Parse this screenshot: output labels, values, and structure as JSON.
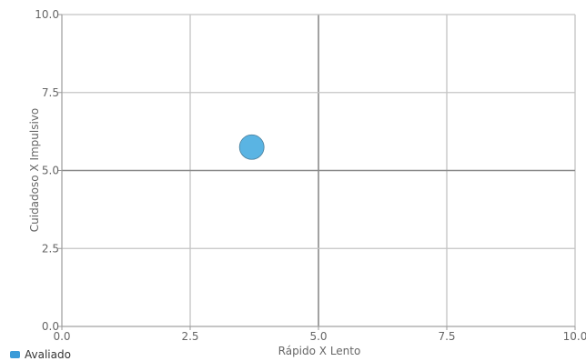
{
  "chart_data": {
    "type": "scatter",
    "xlabel": "Rápido X Lento",
    "ylabel": "Cuidadoso X Impulsivo",
    "xlim": [
      0,
      10
    ],
    "ylim": [
      0,
      10
    ],
    "x_ticks": [
      "0.0",
      "2.5",
      "5.0",
      "7.5",
      "10.0"
    ],
    "y_ticks": [
      "0.0",
      "2.5",
      "5.0",
      "7.5",
      "10.0"
    ],
    "x_tick_values": [
      0,
      2.5,
      5,
      7.5,
      10
    ],
    "y_tick_values": [
      0,
      2.5,
      5,
      7.5,
      10
    ],
    "grid": true,
    "center_lines": {
      "x": 5,
      "y": 5
    },
    "legend_position": "bottom-left",
    "series": [
      {
        "name": "Avaliado",
        "color": "#5ab4e3",
        "legend_color": "#3a9bd8",
        "points": [
          {
            "x": 3.7,
            "y": 5.75
          }
        ]
      }
    ]
  }
}
